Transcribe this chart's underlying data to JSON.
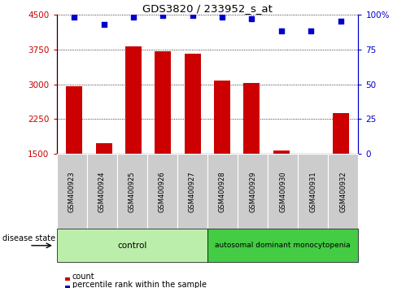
{
  "title": "GDS3820 / 233952_s_at",
  "samples": [
    "GSM400923",
    "GSM400924",
    "GSM400925",
    "GSM400926",
    "GSM400927",
    "GSM400928",
    "GSM400929",
    "GSM400930",
    "GSM400931",
    "GSM400932"
  ],
  "counts": [
    2950,
    1730,
    3820,
    3700,
    3650,
    3080,
    3030,
    1570,
    1510,
    2380
  ],
  "percentile_ranks": [
    98,
    93,
    98,
    99,
    99,
    98,
    97,
    88,
    88,
    95
  ],
  "bar_color": "#cc0000",
  "dot_color": "#0000cc",
  "ylim_left": [
    1500,
    4500
  ],
  "ylim_right": [
    0,
    100
  ],
  "yticks_left": [
    1500,
    2250,
    3000,
    3750,
    4500
  ],
  "yticks_right": [
    0,
    25,
    50,
    75,
    100
  ],
  "ylabel_left_color": "#cc0000",
  "ylabel_right_color": "#0000cc",
  "n_control": 5,
  "control_label": "control",
  "disease_label": "autosomal dominant monocytopenia",
  "control_bg": "#bbeeaa",
  "disease_bg": "#44cc44",
  "disease_state_label": "disease state",
  "legend_count_label": "count",
  "legend_percentile_label": "percentile rank within the sample",
  "bar_width": 0.55,
  "sample_box_bg": "#cccccc"
}
